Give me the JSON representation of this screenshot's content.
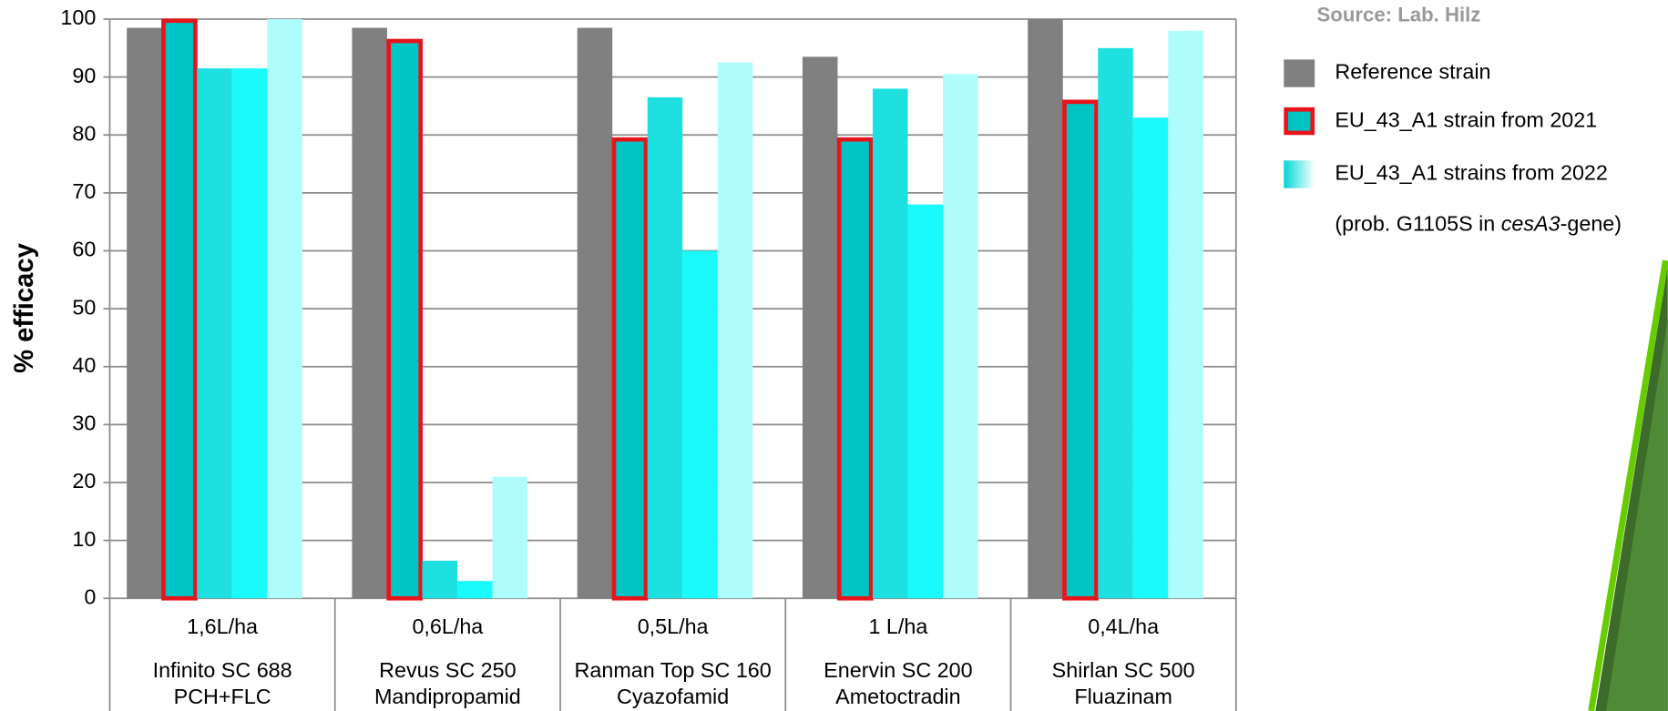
{
  "chart_data": {
    "type": "bar",
    "source": "Source: Lab. Hilz",
    "y_label": "% efficacy",
    "categories": [
      [
        "1,6L/ha",
        "Infinito SC 688",
        "PCH+FLC"
      ],
      [
        "0,6L/ha",
        "Revus SC 250",
        "Mandipropamid"
      ],
      [
        "0,5L/ha",
        "Ranman Top SC 160",
        "Cyazofamid"
      ],
      [
        "1 L/ha",
        "Enervin SC 200",
        "Ametoctradin"
      ],
      [
        "0,4L/ha",
        "Shirlan SC 500",
        "Fluazinam"
      ]
    ],
    "series": [
      {
        "name": "Reference strain",
        "color": "#808080",
        "values": [
          98.5,
          98.5,
          98.5,
          93.5,
          100
        ]
      },
      {
        "name": "EU_43_A1 strain from 2021",
        "color": "#00c4c4",
        "outline": "#e8141b",
        "values": [
          100,
          96.5,
          79.5,
          79.5,
          86
        ]
      },
      {
        "name": "EU_43_A1 strains from 2022",
        "color": "#1ee0e0",
        "values": [
          91.5,
          6.5,
          86.5,
          88,
          95
        ]
      },
      {
        "color": "#1afafa",
        "values": [
          91.5,
          3,
          60,
          68,
          83
        ]
      },
      {
        "color": "#aefcfc",
        "values": [
          100,
          21,
          92.5,
          90.5,
          98
        ]
      }
    ],
    "legend_note": [
      "(prob. G1105S in ",
      "cesA3",
      "-gene)"
    ],
    "ylim": [
      0,
      100
    ],
    "yticks": [
      0,
      10,
      20,
      30,
      40,
      50,
      60,
      70,
      80,
      90,
      100
    ],
    "grid": true
  }
}
